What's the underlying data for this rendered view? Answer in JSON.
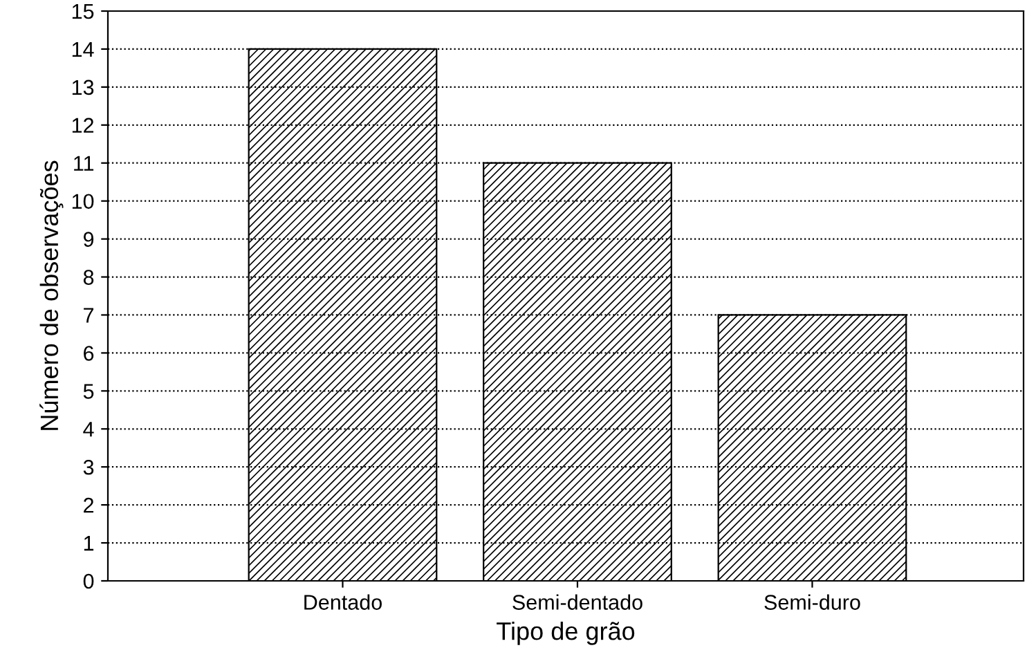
{
  "chart_data": {
    "type": "bar",
    "xlabel": "Tipo de grão",
    "ylabel": "Número de observações",
    "categories": [
      "Dentado",
      "Semi-dentado",
      "Semi-duro"
    ],
    "values": [
      14,
      11,
      7
    ],
    "color": "#000000",
    "ylim": [
      0,
      15
    ],
    "yticks": [
      0,
      1,
      2,
      3,
      4,
      5,
      6,
      7,
      8,
      9,
      10,
      11,
      12,
      13,
      14,
      15
    ],
    "grid": "y"
  }
}
